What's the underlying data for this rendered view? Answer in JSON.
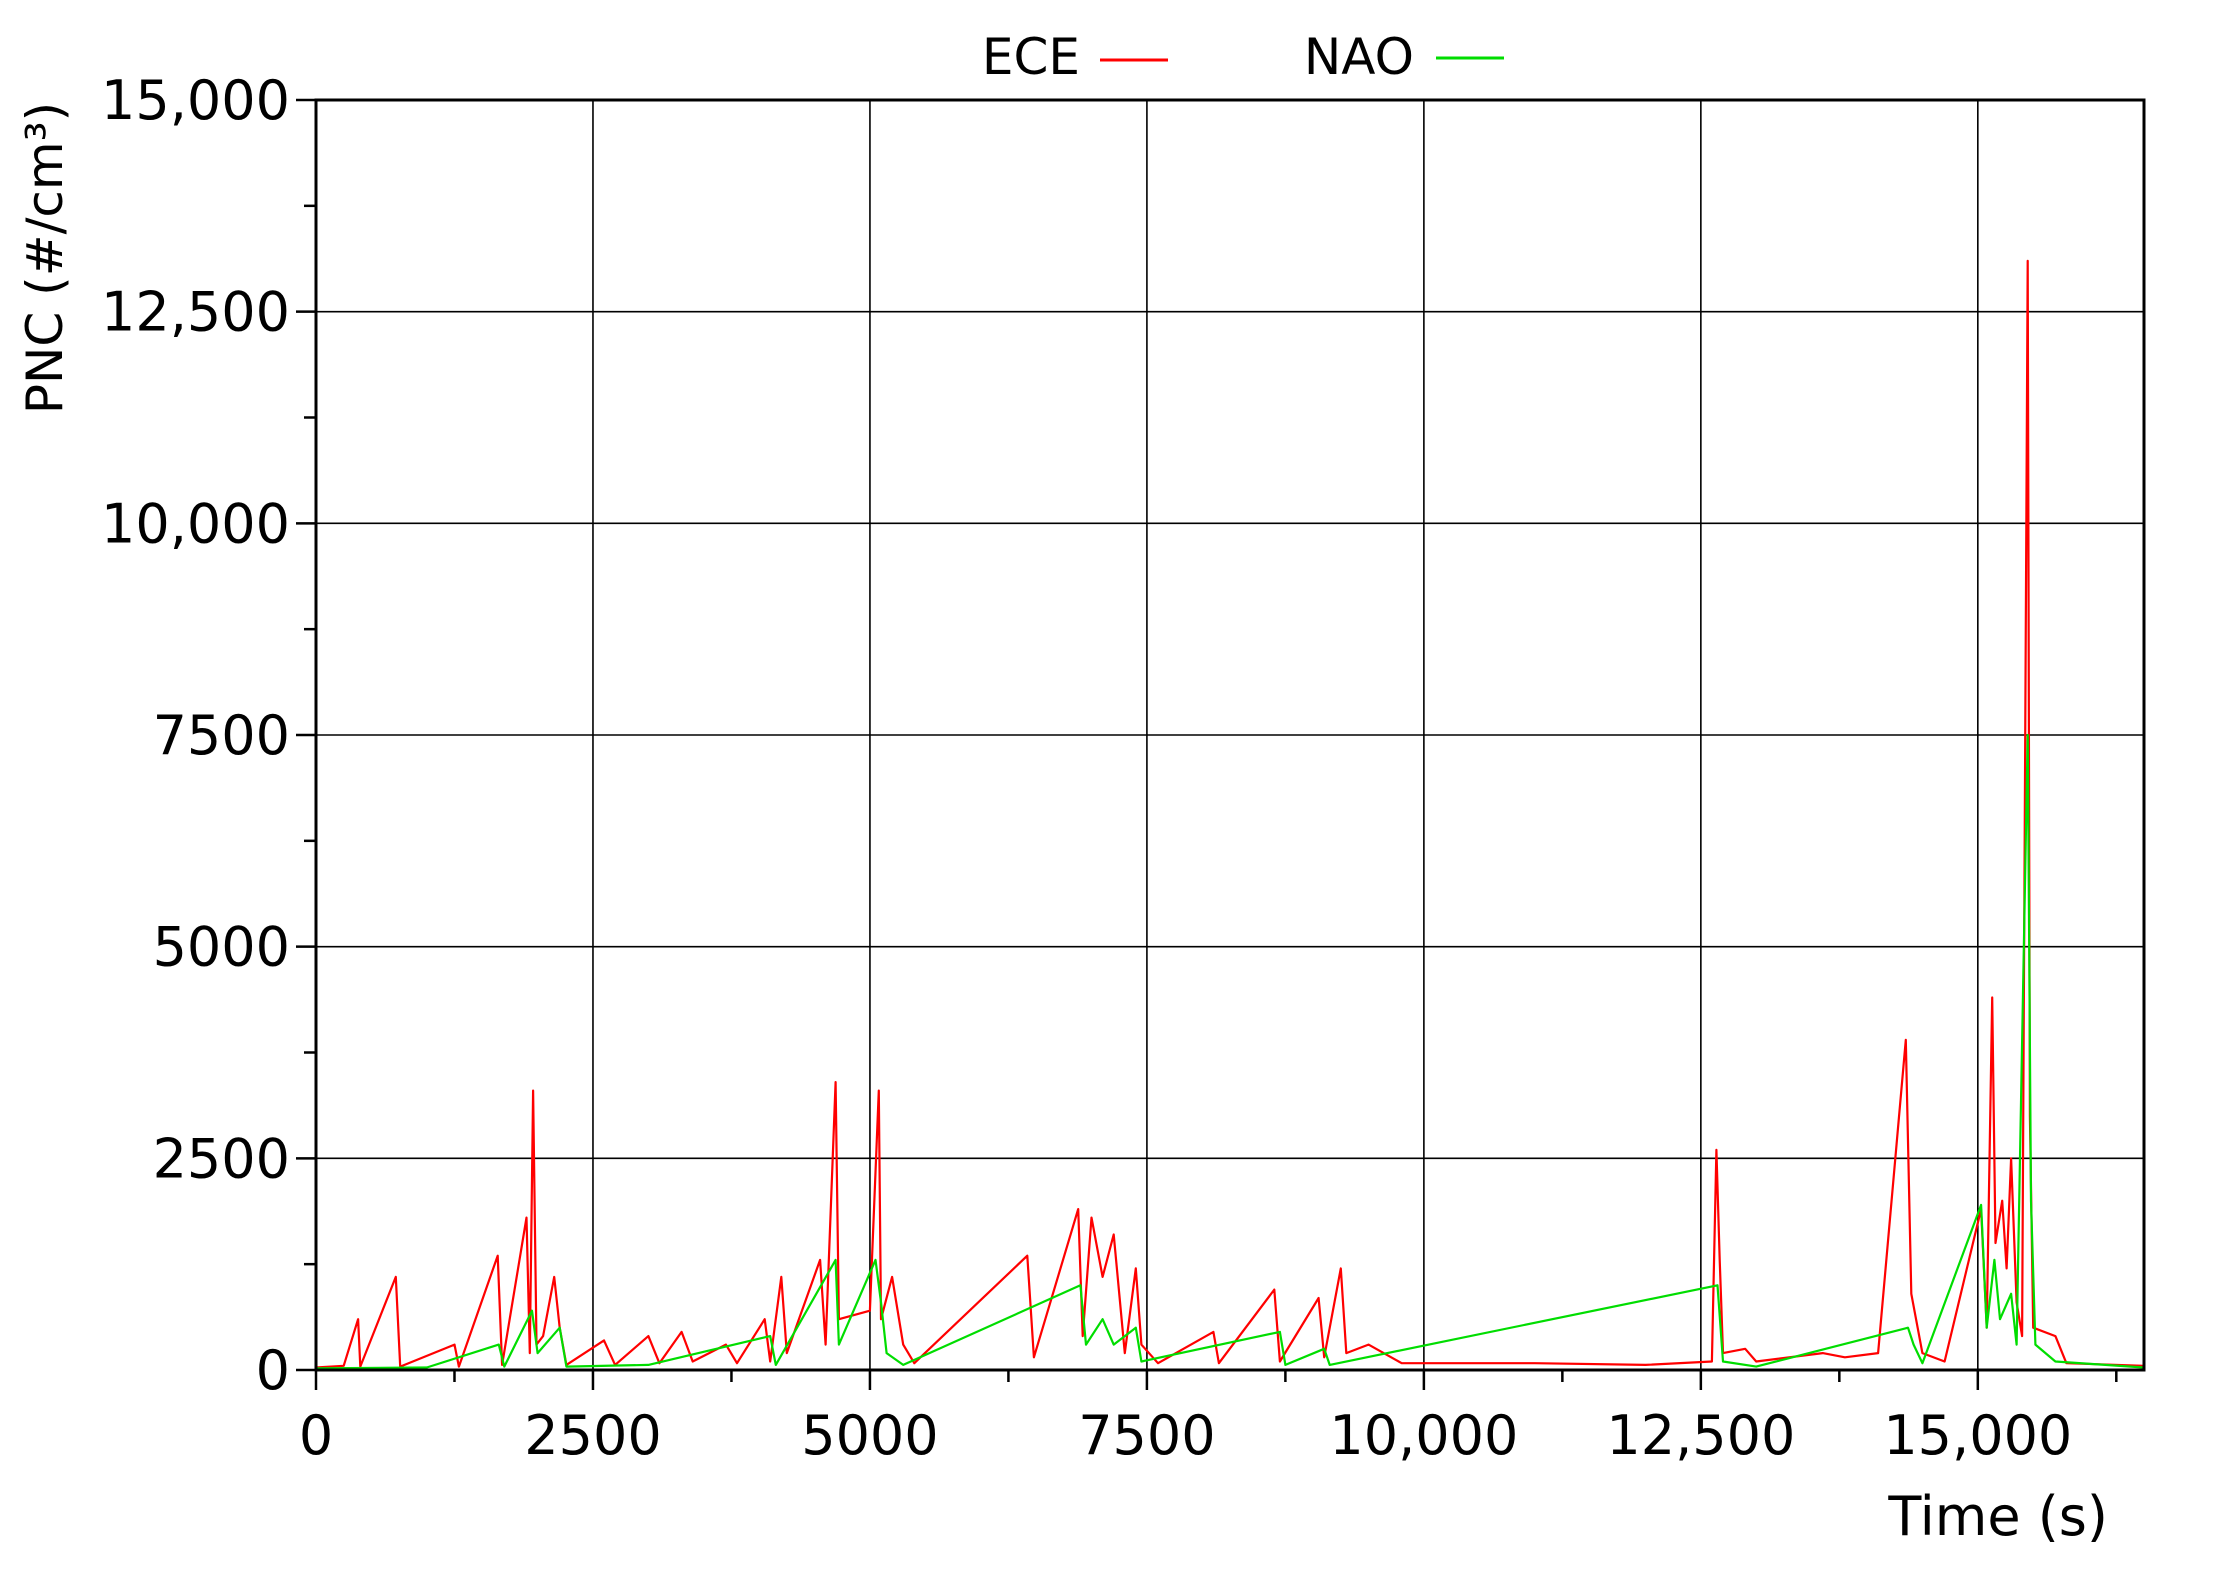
{
  "chart_data": {
    "type": "line",
    "xlabel": "Time (s)",
    "ylabel": "PNC (#/cm³)",
    "xlim": [
      0,
      16500
    ],
    "ylim": [
      0,
      15000
    ],
    "x_ticks": [
      "0",
      "2500",
      "5000",
      "7500",
      "10,000",
      "12,500",
      "15,000"
    ],
    "x_tick_values": [
      0,
      2500,
      5000,
      7500,
      10000,
      12500,
      15000
    ],
    "y_ticks": [
      "0",
      "2500",
      "5000",
      "7500",
      "10,000",
      "12,500",
      "15,000"
    ],
    "y_tick_values": [
      0,
      2500,
      5000,
      7500,
      10000,
      12500,
      15000
    ],
    "grid": true,
    "legend_position": "top-center",
    "series": [
      {
        "name": "ECE",
        "color": "#ff0000",
        "points": [
          [
            0,
            30
          ],
          [
            250,
            50
          ],
          [
            380,
            600
          ],
          [
            400,
            40
          ],
          [
            720,
            1100
          ],
          [
            760,
            40
          ],
          [
            1250,
            300
          ],
          [
            1290,
            40
          ],
          [
            1640,
            1350
          ],
          [
            1680,
            60
          ],
          [
            1900,
            1800
          ],
          [
            1930,
            200
          ],
          [
            1960,
            3300
          ],
          [
            1990,
            300
          ],
          [
            2050,
            400
          ],
          [
            2150,
            1100
          ],
          [
            2200,
            500
          ],
          [
            2260,
            60
          ],
          [
            2600,
            350
          ],
          [
            2700,
            60
          ],
          [
            3000,
            400
          ],
          [
            3100,
            80
          ],
          [
            3300,
            450
          ],
          [
            3400,
            100
          ],
          [
            3700,
            300
          ],
          [
            3800,
            80
          ],
          [
            4050,
            600
          ],
          [
            4100,
            100
          ],
          [
            4200,
            1100
          ],
          [
            4250,
            200
          ],
          [
            4550,
            1300
          ],
          [
            4600,
            300
          ],
          [
            4690,
            3400
          ],
          [
            4720,
            600
          ],
          [
            5000,
            700
          ],
          [
            5080,
            3300
          ],
          [
            5100,
            600
          ],
          [
            5200,
            1100
          ],
          [
            5300,
            300
          ],
          [
            5400,
            80
          ],
          [
            6420,
            1350
          ],
          [
            6480,
            150
          ],
          [
            6880,
            1900
          ],
          [
            6920,
            400
          ],
          [
            7000,
            1800
          ],
          [
            7100,
            1100
          ],
          [
            7200,
            1600
          ],
          [
            7300,
            200
          ],
          [
            7400,
            1200
          ],
          [
            7450,
            300
          ],
          [
            7600,
            80
          ],
          [
            8100,
            450
          ],
          [
            8150,
            80
          ],
          [
            8650,
            950
          ],
          [
            8700,
            100
          ],
          [
            9050,
            850
          ],
          [
            9100,
            150
          ],
          [
            9250,
            1200
          ],
          [
            9300,
            200
          ],
          [
            9500,
            300
          ],
          [
            9800,
            80
          ],
          [
            10500,
            80
          ],
          [
            11000,
            80
          ],
          [
            12000,
            60
          ],
          [
            12600,
            100
          ],
          [
            12640,
            2600
          ],
          [
            12670,
            1300
          ],
          [
            12700,
            200
          ],
          [
            12900,
            250
          ],
          [
            13000,
            100
          ],
          [
            13600,
            200
          ],
          [
            13800,
            150
          ],
          [
            14100,
            200
          ],
          [
            14350,
            3900
          ],
          [
            14400,
            900
          ],
          [
            14500,
            200
          ],
          [
            14700,
            100
          ],
          [
            15030,
            1900
          ],
          [
            15080,
            500
          ],
          [
            15130,
            4400
          ],
          [
            15160,
            1500
          ],
          [
            15220,
            2000
          ],
          [
            15260,
            1200
          ],
          [
            15300,
            2500
          ],
          [
            15350,
            800
          ],
          [
            15400,
            400
          ],
          [
            15450,
            13100
          ],
          [
            15470,
            3000
          ],
          [
            15500,
            500
          ],
          [
            15700,
            400
          ],
          [
            15800,
            80
          ],
          [
            16500,
            50
          ]
        ]
      },
      {
        "name": "NAO",
        "color": "#00dd00",
        "points": [
          [
            0,
            20
          ],
          [
            1000,
            30
          ],
          [
            1650,
            300
          ],
          [
            1700,
            40
          ],
          [
            1950,
            700
          ],
          [
            2000,
            200
          ],
          [
            2200,
            500
          ],
          [
            2260,
            40
          ],
          [
            3000,
            60
          ],
          [
            4100,
            400
          ],
          [
            4150,
            60
          ],
          [
            4690,
            1300
          ],
          [
            4720,
            300
          ],
          [
            5050,
            1300
          ],
          [
            5100,
            800
          ],
          [
            5150,
            200
          ],
          [
            5300,
            60
          ],
          [
            6900,
            1000
          ],
          [
            6950,
            300
          ],
          [
            7100,
            600
          ],
          [
            7200,
            300
          ],
          [
            7400,
            500
          ],
          [
            7450,
            100
          ],
          [
            8700,
            450
          ],
          [
            8750,
            60
          ],
          [
            9100,
            250
          ],
          [
            9150,
            60
          ],
          [
            12650,
            1000
          ],
          [
            12700,
            100
          ],
          [
            13000,
            40
          ],
          [
            14370,
            500
          ],
          [
            14420,
            300
          ],
          [
            14500,
            80
          ],
          [
            15030,
            1950
          ],
          [
            15080,
            500
          ],
          [
            15150,
            1300
          ],
          [
            15200,
            600
          ],
          [
            15300,
            900
          ],
          [
            15350,
            300
          ],
          [
            15450,
            7500
          ],
          [
            15480,
            2000
          ],
          [
            15520,
            300
          ],
          [
            15700,
            100
          ],
          [
            16500,
            30
          ]
        ]
      }
    ]
  }
}
